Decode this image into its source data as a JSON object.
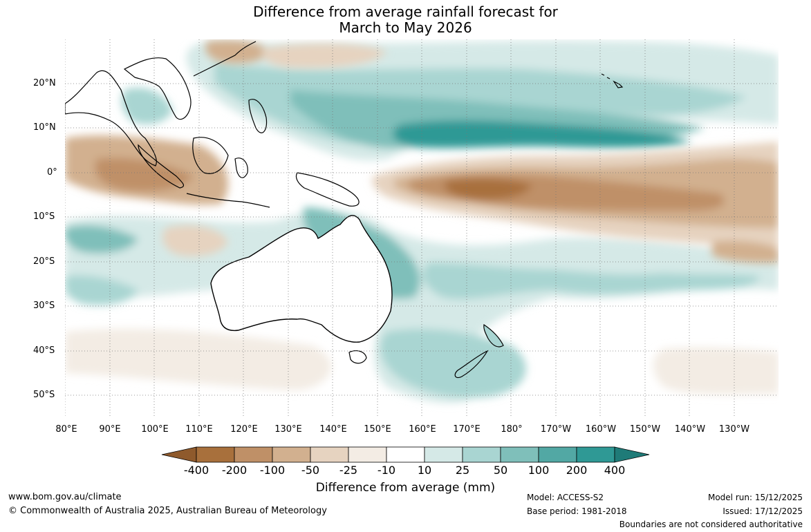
{
  "title": {
    "line1": "Difference from average rainfall forecast for",
    "line2": "March to May 2026"
  },
  "map": {
    "latitude_labels": [
      "20°N",
      "10°N",
      "0°",
      "10°S",
      "20°S",
      "30°S",
      "40°S",
      "50°S"
    ],
    "longitude_labels": [
      "80°E",
      "90°E",
      "100°E",
      "110°E",
      "120°E",
      "130°E",
      "140°E",
      "150°E",
      "160°E",
      "170°E",
      "180°",
      "170°W",
      "160°W",
      "150°W",
      "140°W",
      "130°W"
    ]
  },
  "legend": {
    "ticks": [
      "-400",
      "-200",
      "-100",
      "-50",
      "-25",
      "-10",
      "10",
      "25",
      "50",
      "100",
      "200",
      "400"
    ],
    "colors": [
      "#8f5a2c",
      "#a8703c",
      "#bf9067",
      "#d2b08f",
      "#e6d3c0",
      "#f3ece4",
      "#ffffff",
      "#d5e9e7",
      "#a9d5d2",
      "#7fbfba",
      "#52a8a4",
      "#2f9995",
      "#1f7b78"
    ],
    "title": "Difference from average (mm)"
  },
  "footer": {
    "website": "www.bom.gov.au/climate",
    "copyright": "© Commonwealth of Australia 2025, Australian Bureau of Meteorology",
    "model": "Model: ACCESS-S2",
    "base_period": "Base period: 1981-2018",
    "model_run": "Model run: 15/12/2025",
    "issued": "Issued: 17/12/2025",
    "disclaimer": "Boundaries are not considered authoritative"
  }
}
